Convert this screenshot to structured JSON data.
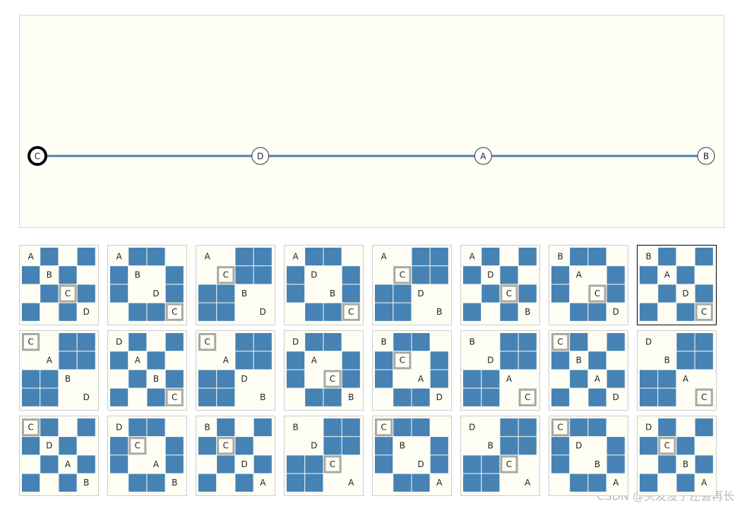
{
  "track": {
    "nodes": [
      "C",
      "D",
      "A",
      "B"
    ]
  },
  "highlight": "C",
  "selected_board": 7,
  "boards": [
    {
      "cells": [
        [
          "A",
          true,
          false,
          true
        ],
        [
          true,
          "B",
          true,
          false
        ],
        [
          false,
          true,
          "C",
          true
        ],
        [
          true,
          false,
          true,
          "D"
        ]
      ]
    },
    {
      "cells": [
        [
          "A",
          true,
          true,
          false
        ],
        [
          true,
          "B",
          false,
          true
        ],
        [
          true,
          false,
          "D",
          true
        ],
        [
          false,
          true,
          true,
          "C"
        ]
      ]
    },
    {
      "cells": [
        [
          "A",
          false,
          true,
          true
        ],
        [
          false,
          "C",
          true,
          true
        ],
        [
          true,
          true,
          "B",
          false
        ],
        [
          true,
          true,
          false,
          "D"
        ]
      ]
    },
    {
      "cells": [
        [
          "A",
          true,
          true,
          false
        ],
        [
          true,
          "D",
          false,
          true
        ],
        [
          true,
          false,
          "B",
          true
        ],
        [
          false,
          true,
          true,
          "C"
        ]
      ]
    },
    {
      "cells": [
        [
          "A",
          false,
          true,
          true
        ],
        [
          false,
          "C",
          true,
          true
        ],
        [
          true,
          true,
          "D",
          false
        ],
        [
          true,
          true,
          false,
          "B"
        ]
      ]
    },
    {
      "cells": [
        [
          "A",
          true,
          false,
          true
        ],
        [
          true,
          "D",
          true,
          false
        ],
        [
          false,
          true,
          "C",
          true
        ],
        [
          true,
          false,
          true,
          "B"
        ]
      ]
    },
    {
      "cells": [
        [
          "B",
          true,
          true,
          false
        ],
        [
          true,
          "A",
          false,
          true
        ],
        [
          true,
          false,
          "C",
          true
        ],
        [
          false,
          true,
          true,
          "D"
        ]
      ]
    },
    {
      "cells": [
        [
          "B",
          true,
          false,
          true
        ],
        [
          true,
          "A",
          true,
          false
        ],
        [
          false,
          true,
          "D",
          true
        ],
        [
          true,
          false,
          true,
          "C"
        ]
      ]
    },
    {
      "cells": [
        [
          "C",
          false,
          true,
          true
        ],
        [
          false,
          "A",
          true,
          true
        ],
        [
          true,
          true,
          "B",
          false
        ],
        [
          true,
          true,
          false,
          "D"
        ]
      ]
    },
    {
      "cells": [
        [
          "D",
          true,
          false,
          true
        ],
        [
          true,
          "A",
          true,
          false
        ],
        [
          false,
          true,
          "B",
          true
        ],
        [
          true,
          false,
          true,
          "C"
        ]
      ]
    },
    {
      "cells": [
        [
          "C",
          false,
          true,
          true
        ],
        [
          false,
          "A",
          true,
          true
        ],
        [
          true,
          true,
          "D",
          false
        ],
        [
          true,
          true,
          false,
          "B"
        ]
      ]
    },
    {
      "cells": [
        [
          "D",
          true,
          true,
          false
        ],
        [
          true,
          "A",
          false,
          true
        ],
        [
          true,
          false,
          "C",
          true
        ],
        [
          false,
          true,
          true,
          "B"
        ]
      ]
    },
    {
      "cells": [
        [
          "B",
          true,
          true,
          false
        ],
        [
          true,
          "C",
          false,
          true
        ],
        [
          true,
          false,
          "A",
          true
        ],
        [
          false,
          true,
          true,
          "D"
        ]
      ]
    },
    {
      "cells": [
        [
          "B",
          false,
          true,
          true
        ],
        [
          false,
          "D",
          true,
          true
        ],
        [
          true,
          true,
          "A",
          false
        ],
        [
          true,
          true,
          false,
          "C"
        ]
      ]
    },
    {
      "cells": [
        [
          "C",
          true,
          false,
          true
        ],
        [
          true,
          "B",
          true,
          false
        ],
        [
          false,
          true,
          "A",
          true
        ],
        [
          true,
          false,
          true,
          "D"
        ]
      ]
    },
    {
      "cells": [
        [
          "D",
          false,
          true,
          true
        ],
        [
          false,
          "B",
          true,
          true
        ],
        [
          true,
          true,
          "A",
          false
        ],
        [
          true,
          true,
          false,
          "C"
        ]
      ]
    },
    {
      "cells": [
        [
          "C",
          true,
          false,
          true
        ],
        [
          true,
          "D",
          true,
          false
        ],
        [
          false,
          true,
          "A",
          true
        ],
        [
          true,
          false,
          true,
          "B"
        ]
      ]
    },
    {
      "cells": [
        [
          "D",
          true,
          true,
          false
        ],
        [
          true,
          "C",
          false,
          true
        ],
        [
          true,
          false,
          "A",
          true
        ],
        [
          false,
          true,
          true,
          "B"
        ]
      ]
    },
    {
      "cells": [
        [
          "B",
          true,
          false,
          true
        ],
        [
          true,
          "C",
          true,
          false
        ],
        [
          false,
          true,
          "D",
          true
        ],
        [
          true,
          false,
          true,
          "A"
        ]
      ]
    },
    {
      "cells": [
        [
          "B",
          false,
          true,
          true
        ],
        [
          false,
          "D",
          true,
          true
        ],
        [
          true,
          true,
          "C",
          false
        ],
        [
          true,
          true,
          false,
          "A"
        ]
      ]
    },
    {
      "cells": [
        [
          "C",
          true,
          true,
          false
        ],
        [
          true,
          "B",
          false,
          true
        ],
        [
          true,
          false,
          "D",
          true
        ],
        [
          false,
          true,
          true,
          "A"
        ]
      ]
    },
    {
      "cells": [
        [
          "D",
          false,
          true,
          true
        ],
        [
          false,
          "B",
          true,
          true
        ],
        [
          true,
          true,
          "C",
          false
        ],
        [
          true,
          true,
          false,
          "A"
        ]
      ]
    },
    {
      "cells": [
        [
          "C",
          true,
          true,
          false
        ],
        [
          true,
          "D",
          false,
          true
        ],
        [
          true,
          false,
          "B",
          true
        ],
        [
          false,
          true,
          true,
          "A"
        ]
      ]
    },
    {
      "cells": [
        [
          "D",
          true,
          false,
          true
        ],
        [
          true,
          "C",
          true,
          false
        ],
        [
          false,
          true,
          "B",
          true
        ],
        [
          true,
          false,
          true,
          "A"
        ]
      ]
    }
  ],
  "watermark": "CSDN @头发没了还会再长"
}
